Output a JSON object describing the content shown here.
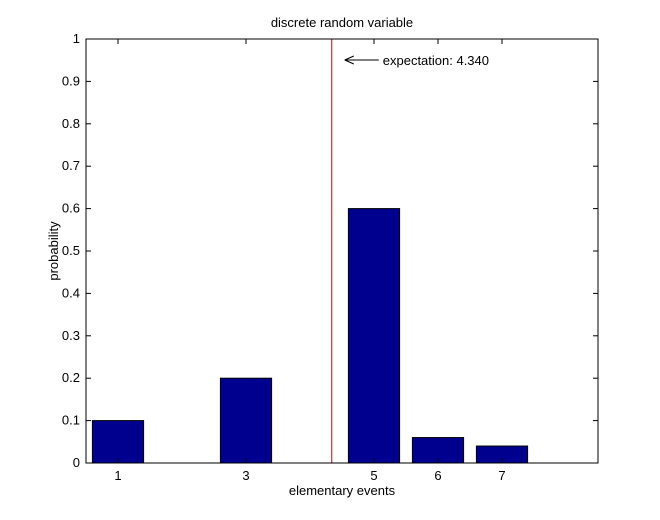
{
  "chart_data": {
    "type": "bar",
    "title": "discrete random variable",
    "xlabel": "elementary events",
    "ylabel": "probability",
    "xlim": [
      0.5,
      8.5
    ],
    "ylim": [
      0,
      1
    ],
    "x_ticks": [
      1,
      3,
      5,
      6,
      7
    ],
    "x_tick_labels": [
      "1",
      "3",
      "5",
      "6",
      "7"
    ],
    "y_ticks": [
      0,
      0.1,
      0.2,
      0.3,
      0.4,
      0.5,
      0.6,
      0.7,
      0.8,
      0.9,
      1
    ],
    "y_tick_labels": [
      "0",
      "0.1",
      "0.2",
      "0.3",
      "0.4",
      "0.5",
      "0.6",
      "0.7",
      "0.8",
      "0.9",
      "1"
    ],
    "bars": [
      {
        "x": 1,
        "value": 0.1
      },
      {
        "x": 3,
        "value": 0.2
      },
      {
        "x": 5,
        "value": 0.6
      },
      {
        "x": 6,
        "value": 0.06
      },
      {
        "x": 7,
        "value": 0.04
      }
    ],
    "bar_width": 0.8,
    "bar_color": "#00008f",
    "expectation": {
      "value": 4.34,
      "label": "expectation: 4.340",
      "line_color": "#d00000"
    },
    "grid": false,
    "legend": "none"
  }
}
